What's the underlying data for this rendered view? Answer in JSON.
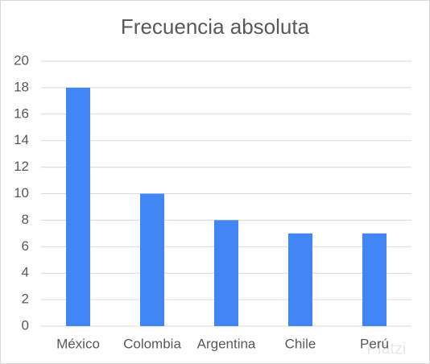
{
  "chart_data": {
    "type": "bar",
    "title": "Frecuencia absoluta",
    "categories": [
      "México",
      "Colombia",
      "Argentina",
      "Chile",
      "Perú"
    ],
    "values": [
      18,
      10,
      8,
      7,
      7
    ],
    "color": "#4285f4",
    "ylim": [
      0,
      20
    ],
    "yticks": [
      0,
      2,
      4,
      6,
      8,
      10,
      12,
      14,
      16,
      18,
      20
    ],
    "grid": true,
    "watermark": "Platzi"
  }
}
